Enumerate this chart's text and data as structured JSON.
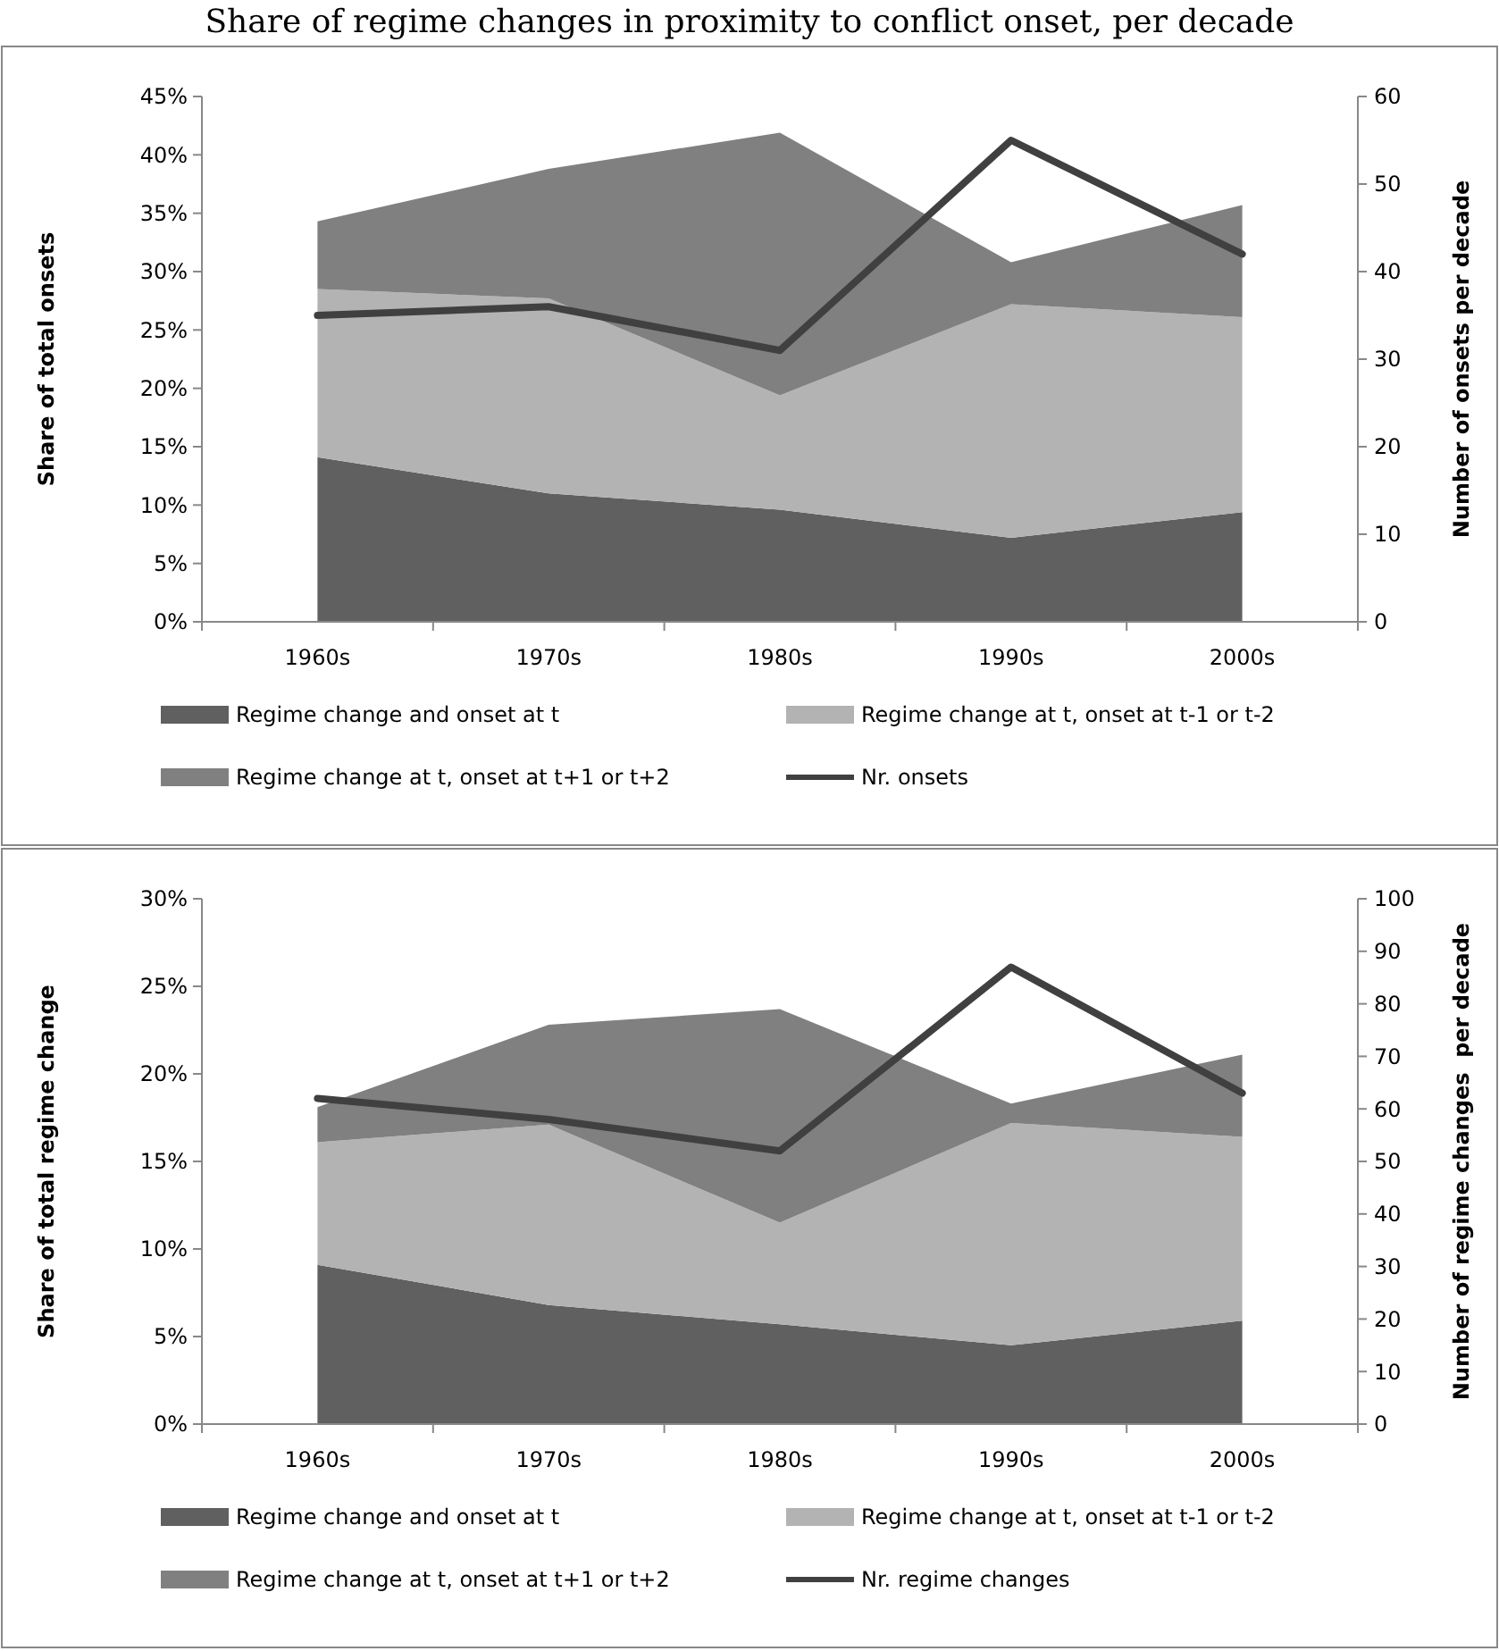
{
  "chart_data": [
    {
      "type": "area",
      "title": "Share of regime changes in proximity to conflict onset, per decade",
      "ylabel": "Share of total onsets",
      "y2label": "Number of onsets per decade",
      "categories": [
        "1960s",
        "1970s",
        "1980s",
        "1990s",
        "2000s"
      ],
      "stacked": true,
      "legend": "bottom",
      "ylim": [
        0,
        45
      ],
      "yticks": [
        {
          "value": 0,
          "label": "0%"
        },
        {
          "value": 5,
          "label": "5%"
        },
        {
          "value": 10,
          "label": "10%"
        },
        {
          "value": 15,
          "label": "15%"
        },
        {
          "value": 20,
          "label": "20%"
        },
        {
          "value": 25,
          "label": "25%"
        },
        {
          "value": 30,
          "label": "30%"
        },
        {
          "value": 35,
          "label": "35%"
        },
        {
          "value": 40,
          "label": "40%"
        },
        {
          "value": 45,
          "label": "45%"
        }
      ],
      "y2lim": [
        0,
        60
      ],
      "y2ticks": [
        0,
        10,
        20,
        30,
        40,
        50,
        60
      ],
      "series": [
        {
          "name": "Regime change and onset at t",
          "color": "#606060",
          "values": [
            14.1,
            11.0,
            9.6,
            7.2,
            9.4
          ]
        },
        {
          "name": "Regime change at t, onset at t-1 or t-2",
          "color": "#b3b3b3",
          "values": [
            14.4,
            16.7,
            9.8,
            20.0,
            16.7
          ]
        },
        {
          "name": "Regime change at t, onset at t+1 or t+2",
          "color": "#808080",
          "values": [
            5.8,
            11.1,
            22.5,
            3.6,
            9.6
          ]
        },
        {
          "name": "Nr. onsets",
          "type": "line",
          "axis": "y2",
          "color": "#404040",
          "values": [
            35,
            36,
            31,
            55,
            42
          ]
        }
      ]
    },
    {
      "type": "area",
      "ylabel": "Share of total regime change",
      "y2label": "Number of regime changes  per decade",
      "categories": [
        "1960s",
        "1970s",
        "1980s",
        "1990s",
        "2000s"
      ],
      "stacked": true,
      "legend": "bottom",
      "ylim": [
        0,
        30
      ],
      "yticks": [
        {
          "value": 0,
          "label": "0%"
        },
        {
          "value": 5,
          "label": "5%"
        },
        {
          "value": 10,
          "label": "10%"
        },
        {
          "value": 15,
          "label": "15%"
        },
        {
          "value": 20,
          "label": "20%"
        },
        {
          "value": 25,
          "label": "25%"
        },
        {
          "value": 30,
          "label": "30%"
        }
      ],
      "y2lim": [
        0,
        100
      ],
      "y2ticks": [
        0,
        10,
        20,
        30,
        40,
        50,
        60,
        70,
        80,
        90,
        100
      ],
      "series": [
        {
          "name": "Regime change and onset at t",
          "color": "#606060",
          "values": [
            9.1,
            6.8,
            5.7,
            4.5,
            5.9
          ]
        },
        {
          "name": "Regime change at t, onset at t-1 or t-2",
          "color": "#b3b3b3",
          "values": [
            7.0,
            10.3,
            5.8,
            12.7,
            10.5
          ]
        },
        {
          "name": "Regime change at t, onset at t+1 or t+2",
          "color": "#808080",
          "values": [
            2.0,
            5.7,
            12.2,
            1.1,
            4.7
          ]
        },
        {
          "name": "Nr. regime changes",
          "type": "line",
          "axis": "y2",
          "color": "#404040",
          "values": [
            62,
            58,
            52,
            87,
            63
          ]
        }
      ]
    }
  ]
}
